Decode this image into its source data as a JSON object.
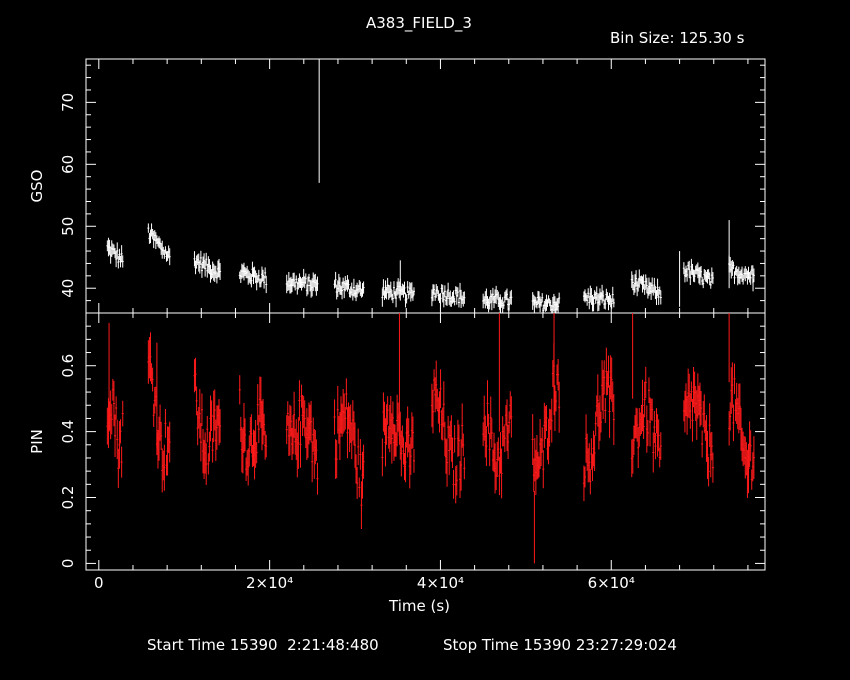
{
  "chart_data": {
    "type": "scatter",
    "title": "A383_FIELD_3",
    "subtitle": "Bin Size: 125.30 s",
    "xlabel": "Time (s)",
    "xlim": [
      -1500,
      78000
    ],
    "x_ticks": [
      {
        "value": 0,
        "label": "0"
      },
      {
        "value": 20000,
        "label": "2×10⁴"
      },
      {
        "value": 40000,
        "label": "4×10⁴"
      },
      {
        "value": 60000,
        "label": "6×10⁴"
      }
    ],
    "footer": {
      "start_label": "Start Time 15390  2:21:48:480",
      "stop_label": "Stop Time 15390 23:27:29:024"
    },
    "panels": [
      {
        "name": "GSO",
        "ylabel": "GSO",
        "ylim": [
          36,
          77
        ],
        "y_ticks": [
          40,
          50,
          60,
          70
        ],
        "color": "#ffffff",
        "segments": [
          {
            "x0": 1000,
            "x1": 2800,
            "start": 46.5,
            "end": 44.5
          },
          {
            "x0": 5800,
            "x1": 8300,
            "start": 49.0,
            "end": 45.0
          },
          {
            "x0": 11200,
            "x1": 14200,
            "start": 44.5,
            "end": 42.5
          },
          {
            "x0": 16500,
            "x1": 19600,
            "start": 42.5,
            "end": 41.5
          },
          {
            "x0": 22000,
            "x1": 25600,
            "start": 41.0,
            "end": 40.5
          },
          {
            "x0": 27600,
            "x1": 31000,
            "start": 40.5,
            "end": 39.5
          },
          {
            "x0": 33200,
            "x1": 36900,
            "start": 39.5,
            "end": 39.0
          },
          {
            "x0": 39000,
            "x1": 42800,
            "start": 39.5,
            "end": 38.5
          },
          {
            "x0": 45000,
            "x1": 48300,
            "start": 38.0,
            "end": 38.0
          },
          {
            "x0": 50800,
            "x1": 53900,
            "start": 37.5,
            "end": 37.5
          },
          {
            "x0": 56800,
            "x1": 60300,
            "start": 38.5,
            "end": 38.0
          },
          {
            "x0": 62400,
            "x1": 65800,
            "start": 41.0,
            "end": 39.0
          },
          {
            "x0": 68500,
            "x1": 71900,
            "start": 43.0,
            "end": 41.0
          },
          {
            "x0": 73800,
            "x1": 76700,
            "start": 43.0,
            "end": 42.0
          }
        ],
        "spikes": [
          {
            "x": 25800,
            "low": 57,
            "high": 77
          },
          {
            "x": 35300,
            "low": 38,
            "high": 44.5
          },
          {
            "x": 47000,
            "low": 36,
            "high": 39
          },
          {
            "x": 51000,
            "low": 36,
            "high": 38
          },
          {
            "x": 68000,
            "low": 37,
            "high": 46
          },
          {
            "x": 73800,
            "low": 40,
            "high": 51
          },
          {
            "x": 76600,
            "low": 39.5,
            "high": 41.5
          }
        ]
      },
      {
        "name": "PIN",
        "ylabel": "PIN",
        "ylim": [
          -0.02,
          0.76
        ],
        "y_ticks": [
          0,
          0.2,
          0.4,
          0.6
        ],
        "color": "#ff1a1a",
        "segments": [
          {
            "x0": 1000,
            "x1": 2800,
            "start": 0.48,
            "end": 0.4
          },
          {
            "x0": 5800,
            "x1": 8300,
            "start": 0.55,
            "end": 0.33
          },
          {
            "x0": 11200,
            "x1": 14200,
            "start": 0.46,
            "end": 0.35
          },
          {
            "x0": 16500,
            "x1": 19600,
            "start": 0.45,
            "end": 0.33
          },
          {
            "x0": 22000,
            "x1": 25600,
            "start": 0.44,
            "end": 0.35
          },
          {
            "x0": 27600,
            "x1": 31000,
            "start": 0.45,
            "end": 0.3
          },
          {
            "x0": 33200,
            "x1": 36900,
            "start": 0.4,
            "end": 0.38
          },
          {
            "x0": 39000,
            "x1": 42800,
            "start": 0.45,
            "end": 0.32
          },
          {
            "x0": 45000,
            "x1": 48300,
            "start": 0.4,
            "end": 0.35
          },
          {
            "x0": 50800,
            "x1": 53900,
            "start": 0.3,
            "end": 0.52
          },
          {
            "x0": 56800,
            "x1": 60300,
            "start": 0.35,
            "end": 0.5
          },
          {
            "x0": 62400,
            "x1": 65800,
            "start": 0.44,
            "end": 0.38
          },
          {
            "x0": 68500,
            "x1": 71900,
            "start": 0.45,
            "end": 0.4
          },
          {
            "x0": 73800,
            "x1": 76700,
            "start": 0.45,
            "end": 0.33
          }
        ],
        "spikes": [
          {
            "x": 1200,
            "low": 0.4,
            "high": 0.73
          },
          {
            "x": 6800,
            "low": 0.35,
            "high": 0.67
          },
          {
            "x": 35200,
            "low": 0.36,
            "high": 0.76
          },
          {
            "x": 46900,
            "low": 0.4,
            "high": 0.76
          },
          {
            "x": 51000,
            "low": 0.0,
            "high": 0.22
          },
          {
            "x": 53300,
            "low": 0.45,
            "high": 0.76
          },
          {
            "x": 62500,
            "low": 0.5,
            "high": 0.76
          },
          {
            "x": 73800,
            "low": 0.55,
            "high": 0.76
          }
        ]
      }
    ]
  }
}
